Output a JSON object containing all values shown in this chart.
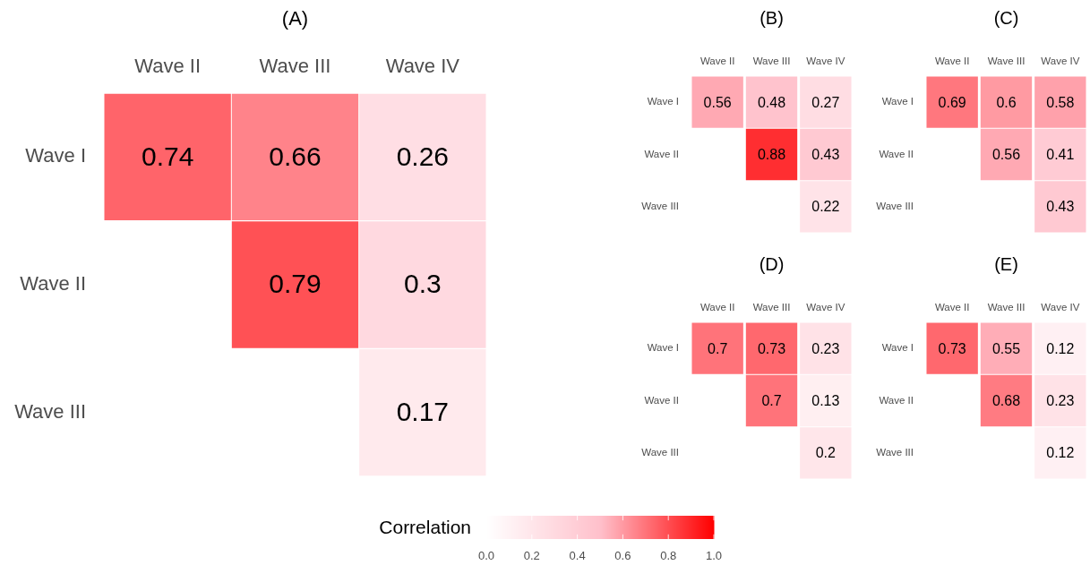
{
  "chart_data": [
    {
      "type": "heatmap",
      "title": "(A)",
      "categories": [
        "Wave II",
        "Wave III",
        "Wave IV"
      ],
      "y_categories": [
        "Wave I",
        "Wave II",
        "Wave III"
      ],
      "cells": [
        [
          0.74,
          0.66,
          0.26
        ],
        [
          null,
          0.79,
          0.3
        ],
        [
          null,
          null,
          0.17
        ]
      ],
      "data_labels": true,
      "clabel": "Correlation",
      "clim": [
        0,
        1
      ],
      "cticks": [
        {
          "value": 0,
          "label": "0.0"
        },
        0.2,
        0.4,
        0.6,
        0.8,
        {
          "value": 1,
          "label": "1.0"
        }
      ]
    },
    {
      "type": "heatmap",
      "title": "(B)",
      "categories": [
        "Wave II",
        "Wave III",
        "Wave IV"
      ],
      "y_categories": [
        "Wave I",
        "Wave II",
        "Wave III"
      ],
      "cells": [
        [
          0.56,
          0.48,
          0.27
        ],
        [
          null,
          0.88,
          0.43
        ],
        [
          null,
          null,
          0.22
        ]
      ],
      "data_labels": true
    },
    {
      "type": "heatmap",
      "title": "(C)",
      "categories": [
        "Wave II",
        "Wave III",
        "Wave IV"
      ],
      "y_categories": [
        "Wave I",
        "Wave II",
        "Wave III"
      ],
      "cells": [
        [
          0.69,
          0.6,
          0.58
        ],
        [
          null,
          0.56,
          0.41
        ],
        [
          null,
          null,
          0.43
        ]
      ],
      "data_labels": true
    },
    {
      "type": "heatmap",
      "title": "(D)",
      "categories": [
        "Wave II",
        "Wave III",
        "Wave IV"
      ],
      "y_categories": [
        "Wave I",
        "Wave II",
        "Wave III"
      ],
      "cells": [
        [
          0.7,
          0.73,
          0.23
        ],
        [
          null,
          0.7,
          0.13
        ],
        [
          null,
          null,
          0.2
        ]
      ],
      "data_labels": true
    },
    {
      "type": "heatmap",
      "title": "(E)",
      "categories": [
        "Wave II",
        "Wave III",
        "Wave IV"
      ],
      "y_categories": [
        "Wave I",
        "Wave II",
        "Wave III"
      ],
      "cells": [
        [
          0.73,
          0.55,
          0.12
        ],
        [
          null,
          0.68,
          0.23
        ],
        [
          null,
          null,
          0.12
        ]
      ],
      "data_labels": true
    }
  ]
}
